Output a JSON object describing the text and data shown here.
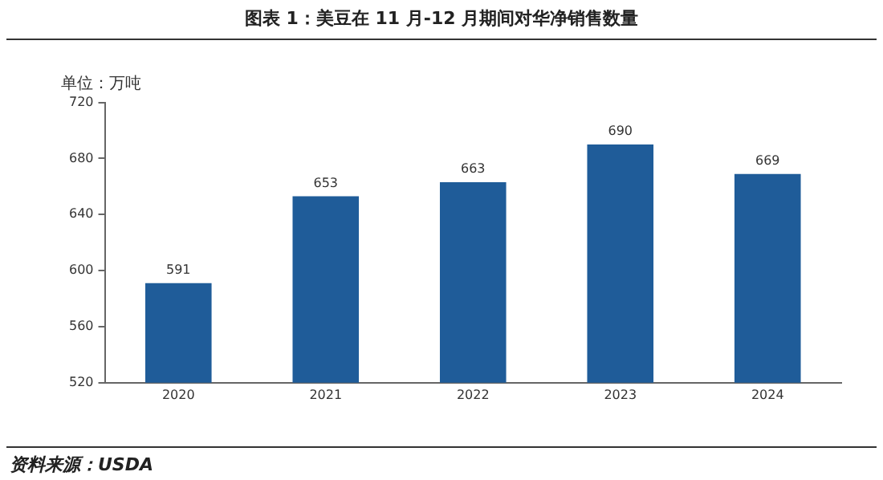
{
  "chart_data": {
    "type": "bar",
    "title": "图表 1：美豆在 11 月-12 月期间对华净销售数量",
    "ylabel": "单位：万吨",
    "categories": [
      "2020",
      "2021",
      "2022",
      "2023",
      "2024"
    ],
    "values": [
      591,
      653,
      663,
      690,
      669
    ],
    "color": "#1f5c99",
    "ylim": [
      520,
      720
    ],
    "yticks": [
      520,
      560,
      600,
      640,
      680,
      720
    ],
    "grid": false,
    "legend": false,
    "data_labels": true,
    "annotations": [
      "资料来源：USDA"
    ]
  }
}
